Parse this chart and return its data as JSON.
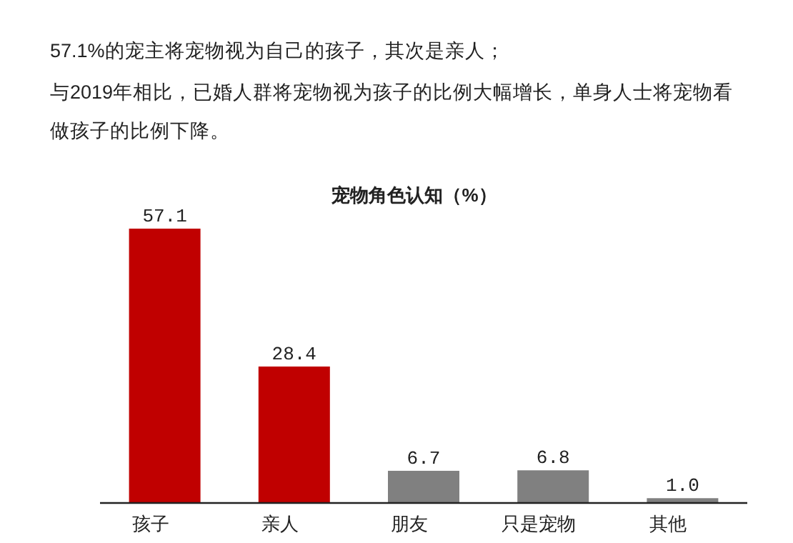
{
  "chart_data": {
    "type": "bar",
    "title": "宠物角色认知（%）",
    "annotations": [
      "57.1%的宠主将宠物视为自己的孩子，其次是亲人；",
      "与2019年相比，已婚人群将宠物视为孩子的比例大幅增长，单身人士将宠物看做孩子的比例下降。"
    ],
    "categories": [
      "孩子",
      "亲人",
      "朋友",
      "只是宠物",
      "其他"
    ],
    "values": [
      57.1,
      28.4,
      6.7,
      6.8,
      1.0
    ],
    "colors": [
      "#c00000",
      "#c00000",
      "#808080",
      "#808080",
      "#808080"
    ],
    "value_labels": [
      "57.1",
      "28.4",
      "6.7",
      "6.8",
      "1.0"
    ]
  }
}
